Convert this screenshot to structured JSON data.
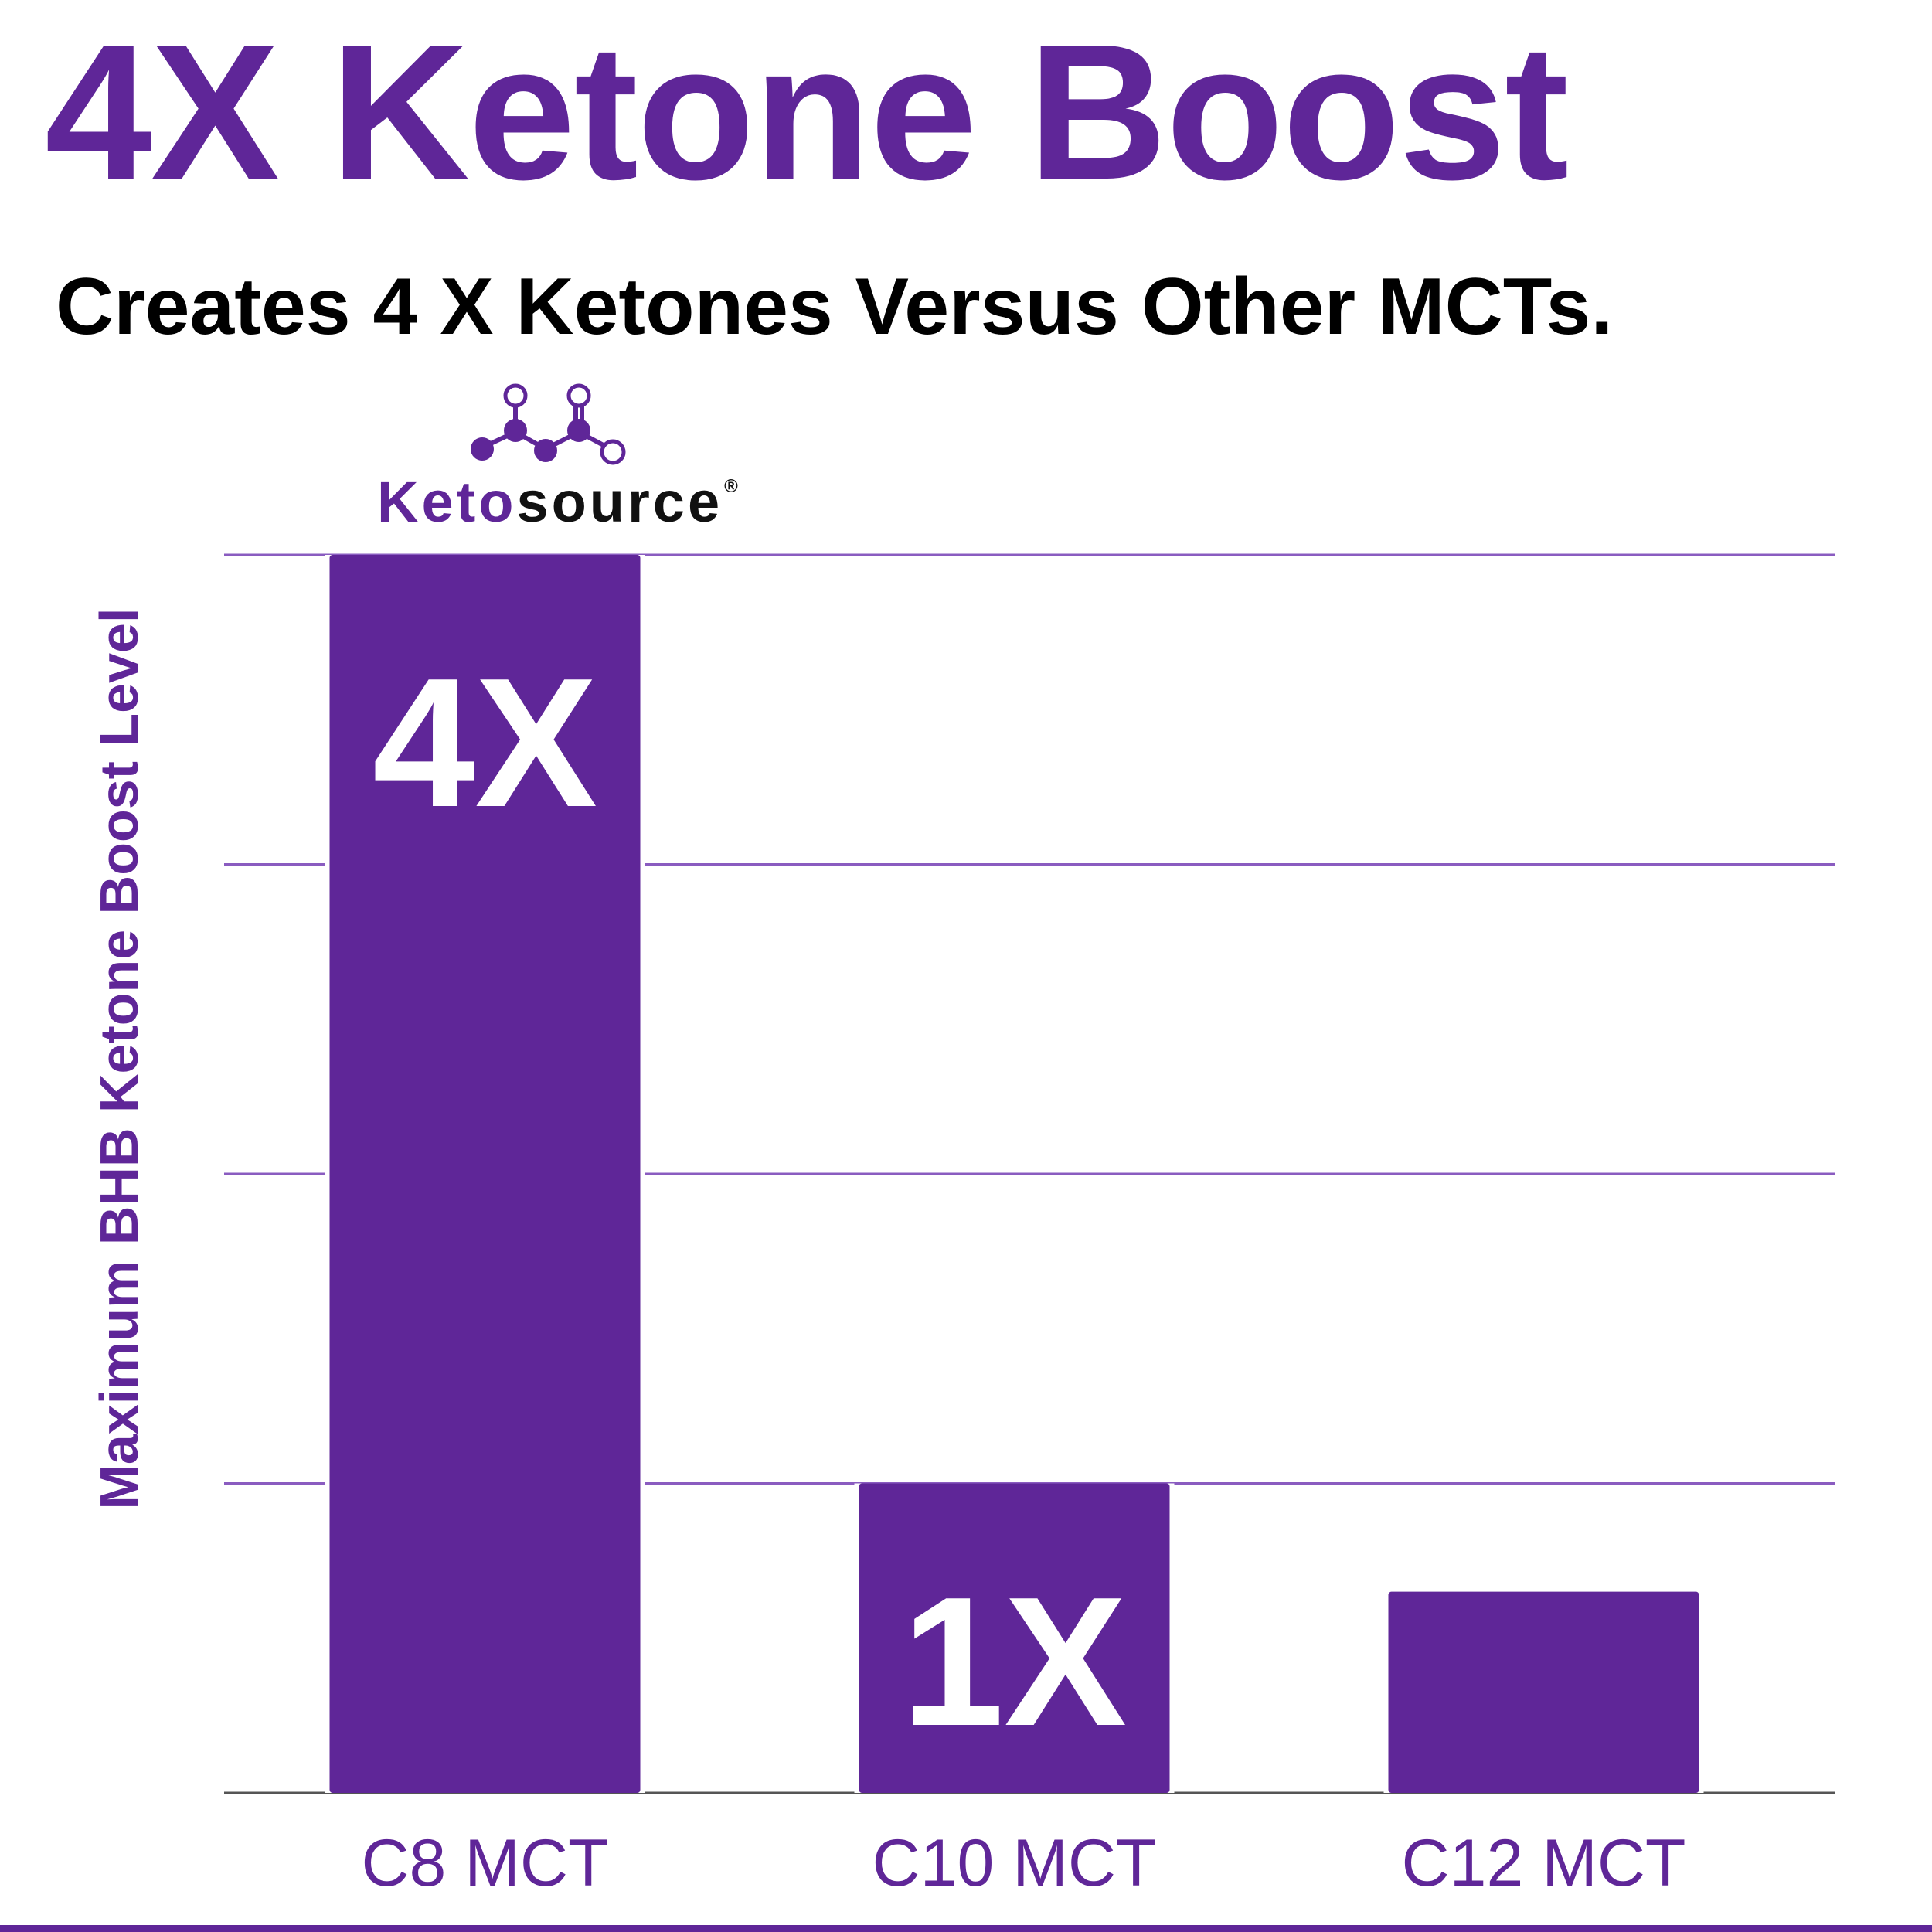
{
  "headline": "4X Ketone Boost",
  "subheadline": "Creates 4 X Ketones Versus Other MCTs.",
  "brand": {
    "name_part1": "Keto",
    "name_part2": "source",
    "registered_mark": "®",
    "icon": "molecule-icon"
  },
  "colors": {
    "accent": "#5f2698",
    "bar": "#5f2698",
    "grid": "#8a5cc0",
    "baseline": "#555555",
    "text_dark": "#000000",
    "bar_label": "#ffffff"
  },
  "chart_data": {
    "type": "bar",
    "title": "",
    "xlabel": "",
    "ylabel": "Maximum BHB Ketone Boost Level",
    "categories": [
      "C8 MCT",
      "C10 MCT",
      "C12 MCT"
    ],
    "values": [
      4,
      1,
      0.65
    ],
    "data_labels": [
      "4X",
      "1X",
      ""
    ],
    "ylim": [
      0,
      4
    ],
    "grid": true,
    "y_tick_labels_shown": false,
    "legend": "none"
  }
}
